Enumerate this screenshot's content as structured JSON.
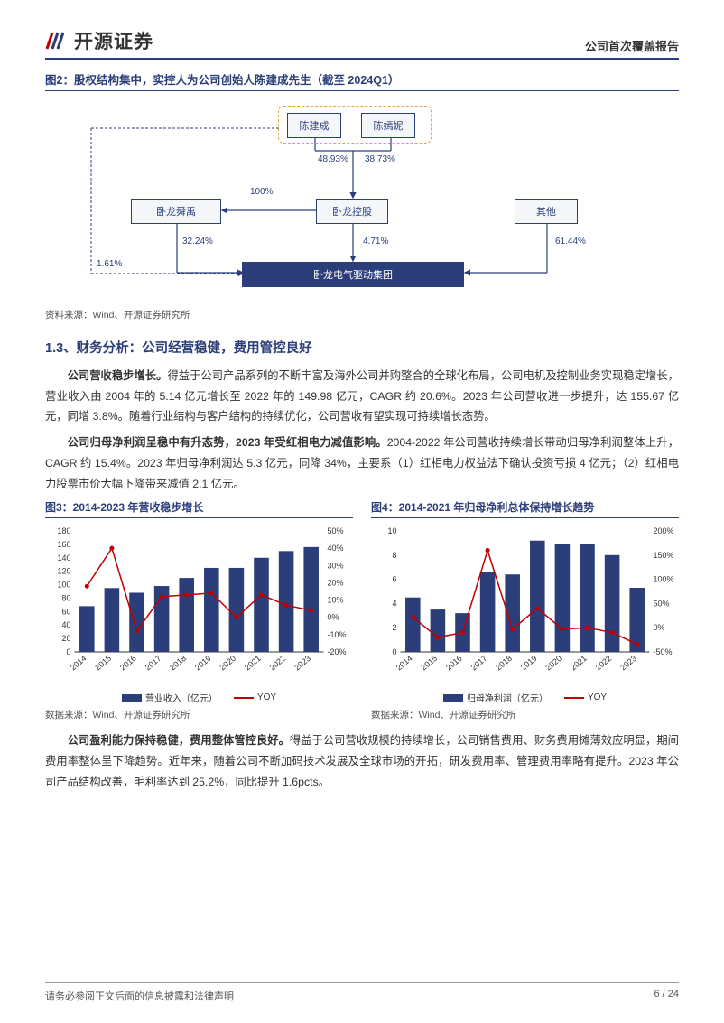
{
  "header": {
    "logo_text": "开源证券",
    "report_type": "公司首次覆盖报告"
  },
  "figure2": {
    "title": "图2：股权结构集中，实控人为公司创始人陈建成先生（截至 2024Q1）",
    "source": "资料来源：Wind、开源证券研究所",
    "nodes": {
      "chenJiancheng": "陈建成",
      "chenYanni": "陈嫣妮",
      "wolongShunyu": "卧龙舜禹",
      "wolongHolding": "卧龙控股",
      "other": "其他",
      "wolongElectric": "卧龙电气驱动集团"
    },
    "edges": {
      "e1": "48.93%",
      "e2": "38.73%",
      "e3": "100%",
      "e4": "32.24%",
      "e5": "4.71%",
      "e6": "61.44%",
      "e7": "1.61%"
    },
    "colors": {
      "box_border": "#2c3e7a",
      "box_fill": "#f5f6fa",
      "filled_bg": "#2c3e7a",
      "dashed": "#e6a23c"
    }
  },
  "section": {
    "heading": "1.3、财务分析：公司经营稳健，费用管控良好",
    "para1_bold": "公司营收稳步增长。",
    "para1": "得益于公司产品系列的不断丰富及海外公司并购整合的全球化布局，公司电机及控制业务实现稳定增长，营业收入由 2004 年的 5.14 亿元增长至 2022 年的 149.98 亿元，CAGR 约 20.6%。2023 年公司营收进一步提升，达 155.67 亿元，同增 3.8%。随着行业结构与客户结构的持续优化，公司营收有望实现可持续增长态势。",
    "para2_bold": "公司归母净利润呈稳中有升态势，2023 年受红相电力减值影响。",
    "para2": "2004-2022 年公司营收持续增长带动归母净利润整体上升，CAGR 约 15.4%。2023 年归母净利润达 5.3 亿元，同降 34%，主要系（1）红相电力权益法下确认投资亏损 4 亿元；（2）红相电力股票市价大幅下降带来减值 2.1 亿元。",
    "para3_bold": "公司盈利能力保持稳健，费用整体管控良好。",
    "para3": "得益于公司营收规模的持续增长，公司销售费用、财务费用摊薄效应明显，期间费用率整体呈下降趋势。近年来，随着公司不断加码技术发展及全球市场的开拓，研发费用率、管理费用率略有提升。2023 年公司产品结构改善，毛利率达到 25.2%，同比提升 1.6pcts。"
  },
  "chart3": {
    "title": "图3：2014-2023 年营收稳步增长",
    "source": "数据来源：Wind、开源证券研究所",
    "type": "bar+line",
    "categories": [
      "2014",
      "2015",
      "2016",
      "2017",
      "2018",
      "2019",
      "2020",
      "2021",
      "2022",
      "2023"
    ],
    "bar_values": [
      68,
      95,
      88,
      98,
      110,
      125,
      125,
      140,
      150,
      156
    ],
    "line_values": [
      18,
      40,
      -8,
      12,
      13,
      14,
      0,
      13,
      7,
      4
    ],
    "bar_color": "#2c3e7a",
    "line_color": "#c00000",
    "y1_lim": [
      0,
      180
    ],
    "y1_step": 20,
    "y2_lim": [
      -20,
      50
    ],
    "y2_step": 10,
    "legend_bar": "营业收入（亿元）",
    "legend_line": "YOY",
    "label_fontsize": 9,
    "axis_color": "#333",
    "grid_color": "#d0d0d0",
    "background_color": "#ffffff"
  },
  "chart4": {
    "title": "图4：2014-2021 年归母净利总体保持增长趋势",
    "source": "数据来源：Wind、开源证券研究所",
    "type": "bar+line",
    "categories": [
      "2014",
      "2015",
      "2016",
      "2017",
      "2018",
      "2019",
      "2020",
      "2021",
      "2022",
      "2023"
    ],
    "bar_values": [
      4.5,
      3.5,
      3.2,
      6.6,
      6.4,
      9.2,
      8.9,
      8.9,
      8.0,
      5.3
    ],
    "line_values": [
      22,
      -20,
      -10,
      160,
      -3,
      40,
      -3,
      0,
      -10,
      -34
    ],
    "bar_color": "#2c3e7a",
    "line_color": "#c00000",
    "y1_lim": [
      0,
      10
    ],
    "y1_step": 2,
    "y2_lim": [
      -50,
      200
    ],
    "y2_step": 50,
    "legend_bar": "归母净利润（亿元）",
    "legend_line": "YOY",
    "label_fontsize": 9,
    "axis_color": "#333",
    "grid_color": "#d0d0d0",
    "background_color": "#ffffff"
  },
  "footer": {
    "disclaimer": "请务必参阅正文后面的信息披露和法律声明",
    "page": "6 / 24"
  }
}
